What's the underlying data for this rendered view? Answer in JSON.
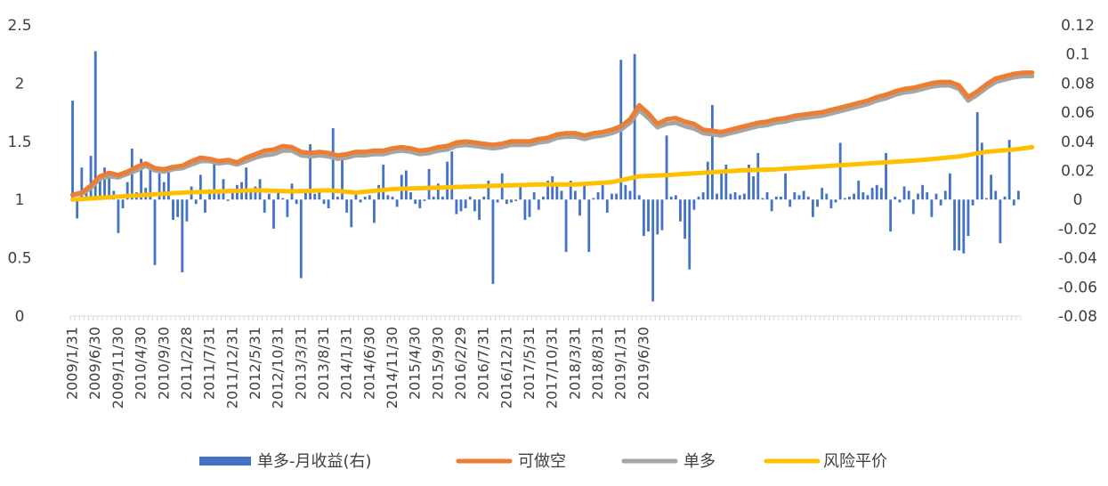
{
  "chart_data": {
    "type": "bar+line",
    "title": "",
    "left_axis": {
      "min": 0,
      "max": 2.5,
      "ticks": [
        "0",
        "0.5",
        "1",
        "1.5",
        "2",
        "2.5"
      ],
      "tick_values": [
        0,
        0.5,
        1,
        1.5,
        2,
        2.5
      ]
    },
    "right_axis": {
      "min": -0.08,
      "max": 0.12,
      "ticks": [
        "-0.08",
        "-0.06",
        "-0.04",
        "-0.02",
        "0",
        "0.02",
        "0.04",
        "0.06",
        "0.08",
        "0.1",
        "0.12"
      ],
      "tick_values": [
        -0.08,
        -0.06,
        -0.04,
        -0.02,
        0,
        0.02,
        0.04,
        0.06,
        0.08,
        0.1,
        0.12
      ]
    },
    "x_labels": [
      "2009/1/31",
      "2009/6/30",
      "2009/11/30",
      "2010/4/30",
      "2010/9/30",
      "2011/2/28",
      "2011/7/31",
      "2011/12/31",
      "2012/5/31",
      "2012/10/31",
      "2013/3/31",
      "2013/8/31",
      "2014/1/31",
      "2014/6/30",
      "2014/11/30",
      "2015/4/30",
      "2015/9/30",
      "2016/2/29",
      "2016/7/31",
      "2016/12/31",
      "2017/5/31",
      "2017/10/31",
      "2018/3/31",
      "2018/8/31",
      "2019/1/31",
      "2019/6/30"
    ],
    "legend": [
      "单多-月收益(右)",
      "可做空",
      "单多",
      "风险平价"
    ],
    "colors": {
      "bar": "#4472c4",
      "short": "#ed7d31",
      "long": "#a5a5a5",
      "parity": "#ffc000",
      "axis": "#d9d9d9"
    },
    "series": [
      {
        "name": "单多-月收益(右)",
        "axis": "right",
        "type": "bar",
        "values": [
          0.068,
          -0.013,
          0.022,
          0.005,
          0.03,
          0.102,
          0.015,
          0.022,
          0.019,
          0.006,
          -0.023,
          -0.006,
          0.012,
          0.035,
          0.005,
          0.028,
          0.008,
          0.022,
          -0.045,
          0.018,
          0.012,
          0.023,
          -0.014,
          -0.012,
          -0.05,
          -0.015,
          0.009,
          -0.003,
          0.017,
          -0.009,
          0.007,
          0.026,
          0.004,
          0.014,
          -0.001,
          0.005,
          0.01,
          0.012,
          0.022,
          0.005,
          0.009,
          0.014,
          -0.009,
          0.004,
          -0.02,
          0.007,
          0.001,
          -0.012,
          0.011,
          -0.003,
          -0.054,
          0.005,
          0.038,
          0.004,
          0.006,
          -0.003,
          -0.006,
          0.049,
          0.002,
          0.03,
          -0.009,
          -0.019,
          0.004,
          -0.002,
          0.002,
          0.003,
          -0.016,
          0.01,
          0.024,
          0.003,
          0.002,
          -0.005,
          0.017,
          0.02,
          0.005,
          -0.003,
          -0.006,
          -0.001,
          0.021,
          0.002,
          0.011,
          0.002,
          0.026,
          0.033,
          -0.01,
          -0.008,
          -0.006,
          0.002,
          -0.008,
          -0.014,
          0.002,
          0.013,
          -0.058,
          -0.002,
          0.018,
          -0.003,
          -0.002,
          -0.001,
          0.011,
          -0.014,
          -0.012,
          0.005,
          -0.007,
          0.002,
          0.013,
          0.016,
          0.01,
          0.006,
          -0.036,
          0.013,
          0.006,
          -0.011,
          0.012,
          -0.036,
          0.001,
          0.005,
          0.01,
          -0.009,
          0.004,
          0.004,
          0.096,
          0.01,
          0.006,
          0.1,
          0.003,
          -0.025,
          -0.022,
          -0.07,
          -0.024,
          -0.021,
          0.044,
          0.002,
          0.003,
          -0.015,
          -0.027,
          -0.048,
          -0.007,
          0.002,
          0.005,
          0.026,
          0.065,
          0.004,
          0.02,
          0.024,
          0.004,
          0.005,
          0.003,
          0.004,
          0.024,
          0.016,
          0.032,
          0.001,
          0.005,
          -0.008,
          0.002,
          0.002,
          0.018,
          -0.005,
          0.005,
          0.003,
          0.006,
          0.002,
          -0.012,
          -0.005,
          0.008,
          0.004,
          -0.006,
          -0.002,
          0.039,
          0.001,
          0.002,
          0.004,
          0.013,
          0.005,
          0.003,
          0.008,
          0.01,
          0.008,
          0.032,
          -0.022,
          0.002,
          -0.002,
          0.009,
          0.006,
          -0.01,
          0.004,
          0.01,
          0.005,
          -0.012,
          0.004,
          -0.004,
          0.006,
          0.018,
          -0.035,
          -0.035,
          -0.037,
          -0.025,
          -0.004,
          0.06,
          0.039,
          0.001,
          0.017,
          0.006,
          -0.03,
          0.002,
          0.041,
          -0.004,
          0.006
        ]
      },
      {
        "name": "可做空",
        "axis": "left",
        "type": "line",
        "points": [
          [
            0,
            1.04
          ],
          [
            2,
            1.06
          ],
          [
            4,
            1.12
          ],
          [
            6,
            1.2
          ],
          [
            8,
            1.23
          ],
          [
            10,
            1.21
          ],
          [
            12,
            1.24
          ],
          [
            14,
            1.28
          ],
          [
            16,
            1.31
          ],
          [
            18,
            1.27
          ],
          [
            20,
            1.26
          ],
          [
            22,
            1.28
          ],
          [
            24,
            1.29
          ],
          [
            26,
            1.33
          ],
          [
            28,
            1.36
          ],
          [
            30,
            1.35
          ],
          [
            32,
            1.33
          ],
          [
            34,
            1.34
          ],
          [
            36,
            1.32
          ],
          [
            38,
            1.36
          ],
          [
            40,
            1.39
          ],
          [
            42,
            1.42
          ],
          [
            44,
            1.43
          ],
          [
            46,
            1.46
          ],
          [
            48,
            1.45
          ],
          [
            50,
            1.41
          ],
          [
            52,
            1.4
          ],
          [
            54,
            1.41
          ],
          [
            56,
            1.4
          ],
          [
            58,
            1.38
          ],
          [
            60,
            1.39
          ],
          [
            62,
            1.41
          ],
          [
            64,
            1.41
          ],
          [
            66,
            1.42
          ],
          [
            68,
            1.42
          ],
          [
            70,
            1.44
          ],
          [
            72,
            1.45
          ],
          [
            74,
            1.44
          ],
          [
            76,
            1.42
          ],
          [
            78,
            1.43
          ],
          [
            80,
            1.45
          ],
          [
            82,
            1.46
          ],
          [
            84,
            1.49
          ],
          [
            86,
            1.5
          ],
          [
            88,
            1.49
          ],
          [
            90,
            1.48
          ],
          [
            92,
            1.47
          ],
          [
            94,
            1.48
          ],
          [
            96,
            1.5
          ],
          [
            98,
            1.5
          ],
          [
            100,
            1.5
          ],
          [
            102,
            1.52
          ],
          [
            104,
            1.53
          ],
          [
            106,
            1.56
          ],
          [
            108,
            1.57
          ],
          [
            110,
            1.57
          ],
          [
            112,
            1.55
          ],
          [
            114,
            1.57
          ],
          [
            116,
            1.58
          ],
          [
            118,
            1.6
          ],
          [
            120,
            1.63
          ],
          [
            122,
            1.69
          ],
          [
            124,
            1.81
          ],
          [
            126,
            1.74
          ],
          [
            128,
            1.65
          ],
          [
            130,
            1.69
          ],
          [
            132,
            1.7
          ],
          [
            134,
            1.67
          ],
          [
            136,
            1.65
          ],
          [
            138,
            1.6
          ],
          [
            140,
            1.59
          ],
          [
            142,
            1.58
          ],
          [
            144,
            1.6
          ],
          [
            146,
            1.62
          ],
          [
            148,
            1.64
          ],
          [
            150,
            1.66
          ],
          [
            152,
            1.67
          ],
          [
            154,
            1.69
          ],
          [
            156,
            1.7
          ],
          [
            158,
            1.72
          ],
          [
            160,
            1.73
          ],
          [
            162,
            1.74
          ],
          [
            164,
            1.75
          ],
          [
            166,
            1.77
          ],
          [
            168,
            1.79
          ],
          [
            170,
            1.81
          ],
          [
            172,
            1.83
          ],
          [
            174,
            1.85
          ],
          [
            176,
            1.88
          ],
          [
            178,
            1.9
          ],
          [
            180,
            1.93
          ],
          [
            182,
            1.95
          ],
          [
            184,
            1.96
          ],
          [
            186,
            1.98
          ],
          [
            188,
            2.0
          ],
          [
            190,
            2.01
          ],
          [
            192,
            2.01
          ],
          [
            194,
            1.98
          ],
          [
            196,
            1.88
          ],
          [
            198,
            1.93
          ],
          [
            200,
            1.99
          ],
          [
            202,
            2.04
          ],
          [
            204,
            2.06
          ],
          [
            206,
            2.08
          ],
          [
            208,
            2.09
          ],
          [
            210,
            2.09
          ]
        ]
      },
      {
        "name": "单多",
        "axis": "left",
        "type": "line",
        "points": [
          [
            0,
            1.04
          ],
          [
            2,
            1.05
          ],
          [
            4,
            1.1
          ],
          [
            6,
            1.18
          ],
          [
            8,
            1.2
          ],
          [
            10,
            1.19
          ],
          [
            12,
            1.22
          ],
          [
            14,
            1.25
          ],
          [
            16,
            1.29
          ],
          [
            18,
            1.25
          ],
          [
            20,
            1.24
          ],
          [
            22,
            1.26
          ],
          [
            24,
            1.27
          ],
          [
            26,
            1.3
          ],
          [
            28,
            1.33
          ],
          [
            30,
            1.33
          ],
          [
            32,
            1.31
          ],
          [
            34,
            1.32
          ],
          [
            36,
            1.3
          ],
          [
            38,
            1.33
          ],
          [
            40,
            1.36
          ],
          [
            42,
            1.38
          ],
          [
            44,
            1.39
          ],
          [
            46,
            1.42
          ],
          [
            48,
            1.42
          ],
          [
            50,
            1.38
          ],
          [
            52,
            1.37
          ],
          [
            54,
            1.38
          ],
          [
            56,
            1.37
          ],
          [
            58,
            1.35
          ],
          [
            60,
            1.36
          ],
          [
            62,
            1.38
          ],
          [
            64,
            1.38
          ],
          [
            66,
            1.39
          ],
          [
            68,
            1.39
          ],
          [
            70,
            1.41
          ],
          [
            72,
            1.42
          ],
          [
            74,
            1.41
          ],
          [
            76,
            1.39
          ],
          [
            78,
            1.4
          ],
          [
            80,
            1.42
          ],
          [
            82,
            1.43
          ],
          [
            84,
            1.46
          ],
          [
            86,
            1.47
          ],
          [
            88,
            1.46
          ],
          [
            90,
            1.45
          ],
          [
            92,
            1.44
          ],
          [
            94,
            1.45
          ],
          [
            96,
            1.47
          ],
          [
            98,
            1.47
          ],
          [
            100,
            1.47
          ],
          [
            102,
            1.49
          ],
          [
            104,
            1.5
          ],
          [
            106,
            1.53
          ],
          [
            108,
            1.54
          ],
          [
            110,
            1.54
          ],
          [
            112,
            1.52
          ],
          [
            114,
            1.54
          ],
          [
            116,
            1.55
          ],
          [
            118,
            1.57
          ],
          [
            120,
            1.6
          ],
          [
            122,
            1.66
          ],
          [
            124,
            1.77
          ],
          [
            126,
            1.7
          ],
          [
            128,
            1.62
          ],
          [
            130,
            1.65
          ],
          [
            132,
            1.66
          ],
          [
            134,
            1.63
          ],
          [
            136,
            1.61
          ],
          [
            138,
            1.57
          ],
          [
            140,
            1.56
          ],
          [
            142,
            1.55
          ],
          [
            144,
            1.57
          ],
          [
            146,
            1.59
          ],
          [
            148,
            1.61
          ],
          [
            150,
            1.63
          ],
          [
            152,
            1.64
          ],
          [
            154,
            1.66
          ],
          [
            156,
            1.67
          ],
          [
            158,
            1.69
          ],
          [
            160,
            1.7
          ],
          [
            162,
            1.71
          ],
          [
            164,
            1.72
          ],
          [
            166,
            1.74
          ],
          [
            168,
            1.76
          ],
          [
            170,
            1.78
          ],
          [
            172,
            1.8
          ],
          [
            174,
            1.82
          ],
          [
            176,
            1.85
          ],
          [
            178,
            1.87
          ],
          [
            180,
            1.9
          ],
          [
            182,
            1.92
          ],
          [
            184,
            1.93
          ],
          [
            186,
            1.95
          ],
          [
            188,
            1.97
          ],
          [
            190,
            1.98
          ],
          [
            192,
            1.98
          ],
          [
            194,
            1.95
          ],
          [
            196,
            1.85
          ],
          [
            198,
            1.9
          ],
          [
            200,
            1.96
          ],
          [
            202,
            2.01
          ],
          [
            204,
            2.03
          ],
          [
            206,
            2.05
          ],
          [
            208,
            2.06
          ],
          [
            210,
            2.06
          ]
        ]
      },
      {
        "name": "风险平价",
        "axis": "left",
        "type": "line",
        "points": [
          [
            0,
            1.0
          ],
          [
            8,
            1.02
          ],
          [
            16,
            1.04
          ],
          [
            24,
            1.06
          ],
          [
            32,
            1.07
          ],
          [
            40,
            1.08
          ],
          [
            48,
            1.07
          ],
          [
            56,
            1.08
          ],
          [
            62,
            1.06
          ],
          [
            70,
            1.09
          ],
          [
            78,
            1.1
          ],
          [
            86,
            1.11
          ],
          [
            94,
            1.12
          ],
          [
            102,
            1.13
          ],
          [
            110,
            1.13
          ],
          [
            118,
            1.15
          ],
          [
            124,
            1.2
          ],
          [
            130,
            1.21
          ],
          [
            138,
            1.23
          ],
          [
            146,
            1.25
          ],
          [
            154,
            1.26
          ],
          [
            162,
            1.28
          ],
          [
            170,
            1.3
          ],
          [
            178,
            1.32
          ],
          [
            186,
            1.34
          ],
          [
            194,
            1.37
          ],
          [
            200,
            1.41
          ],
          [
            206,
            1.43
          ],
          [
            210,
            1.45
          ]
        ]
      }
    ]
  }
}
